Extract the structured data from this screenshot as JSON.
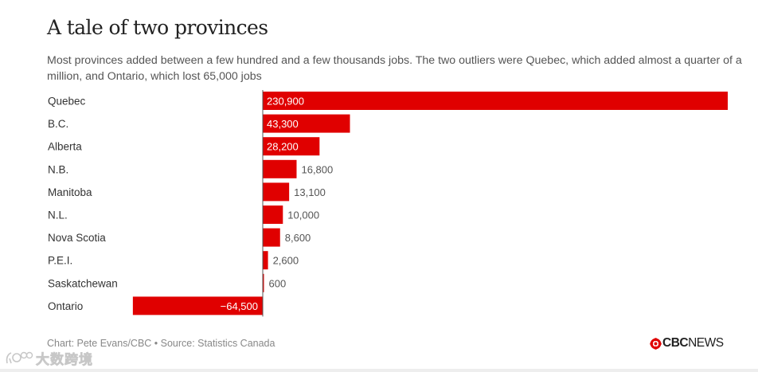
{
  "title": "A tale of two provinces",
  "subtitle": "Most provinces added between a few hundred and a few thousands jobs. The two outliers were Quebec, which added almost a quarter of a million, and Ontario, which lost 65,000 jobs",
  "chart_data": {
    "type": "bar",
    "orientation": "horizontal",
    "categories": [
      "Quebec",
      "B.C.",
      "Alberta",
      "N.B.",
      "Manitoba",
      "N.L.",
      "Nova Scotia",
      "P.E.I.",
      "Saskatchewan",
      "Ontario"
    ],
    "values": [
      230900,
      43300,
      28200,
      16800,
      13100,
      10000,
      8600,
      2600,
      600,
      -64500
    ],
    "value_labels": [
      "230,900",
      "43,300",
      "28,200",
      "16,800",
      "13,100",
      "10,000",
      "8,600",
      "2,600",
      "600",
      "−64,500"
    ],
    "xlim": [
      -64500,
      230900
    ],
    "bar_color": "#e00000",
    "label_inside_color": "#ffffff",
    "label_outside_color": "#555555",
    "xlabel": "",
    "ylabel": ""
  },
  "footer": {
    "source": "Chart: Pete Evans/CBC • Source: Statistics Canada",
    "logo_brand": "CBC",
    "logo_suffix": "NEWS",
    "logo_color": "#e00000",
    "watermark_text": "大数跨境"
  }
}
